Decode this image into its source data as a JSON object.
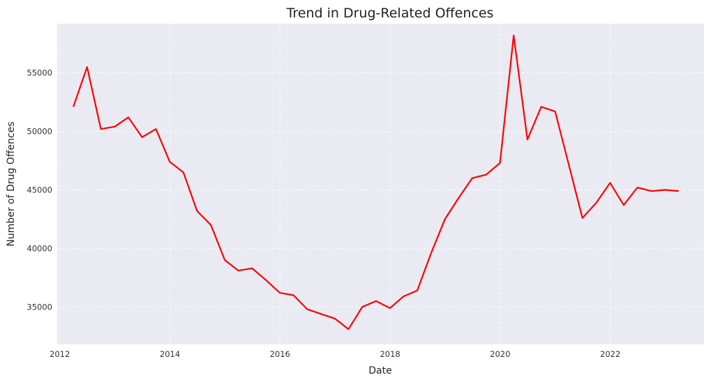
{
  "chart_data": {
    "type": "line",
    "title": "Trend in Drug-Related Offences",
    "xlabel": "Date",
    "ylabel": "Number of Drug Offences",
    "x_ticks": [
      "2012",
      "2014",
      "2016",
      "2018",
      "2020",
      "2022"
    ],
    "y_ticks": [
      "35000",
      "40000",
      "45000",
      "50000",
      "55000"
    ],
    "xlim": [
      "2011-12-15",
      "2023-09-15"
    ],
    "ylim": [
      31800,
      59200
    ],
    "grid": true,
    "line_color": "#ff0000",
    "plot_background": "#eaeaf2",
    "series": [
      {
        "x": [
          "2012-03-31",
          "2012-06-30",
          "2012-09-30",
          "2012-12-31",
          "2013-03-31",
          "2013-06-30",
          "2013-09-30",
          "2013-12-31",
          "2014-03-31",
          "2014-06-30",
          "2014-09-30",
          "2014-12-31",
          "2015-03-31",
          "2015-06-30",
          "2015-09-30",
          "2015-12-31",
          "2016-03-31",
          "2016-06-30",
          "2016-09-30",
          "2016-12-31",
          "2017-03-31",
          "2017-06-30",
          "2017-09-30",
          "2017-12-31",
          "2018-03-31",
          "2018-06-30",
          "2018-09-30",
          "2018-12-31",
          "2019-03-31",
          "2019-06-30",
          "2019-09-30",
          "2019-12-31",
          "2020-03-31",
          "2020-06-30",
          "2020-09-30",
          "2020-12-31",
          "2021-03-31",
          "2021-06-30",
          "2021-09-30",
          "2021-12-31",
          "2022-03-31",
          "2022-06-30",
          "2022-09-30",
          "2022-12-31",
          "2023-03-31"
        ],
        "values": [
          52100,
          55500,
          50200,
          50400,
          51200,
          49500,
          50200,
          47400,
          46500,
          43200,
          42000,
          39000,
          38100,
          38300,
          37300,
          36200,
          36000,
          34800,
          34400,
          34000,
          33100,
          35000,
          35500,
          34900,
          35900,
          36400,
          39600,
          42500,
          44300,
          46000,
          46300,
          47300,
          58200,
          49300,
          52100,
          51700,
          47200,
          42600,
          43900,
          45600,
          43700,
          45200,
          44900,
          45000,
          44900
        ]
      }
    ]
  }
}
